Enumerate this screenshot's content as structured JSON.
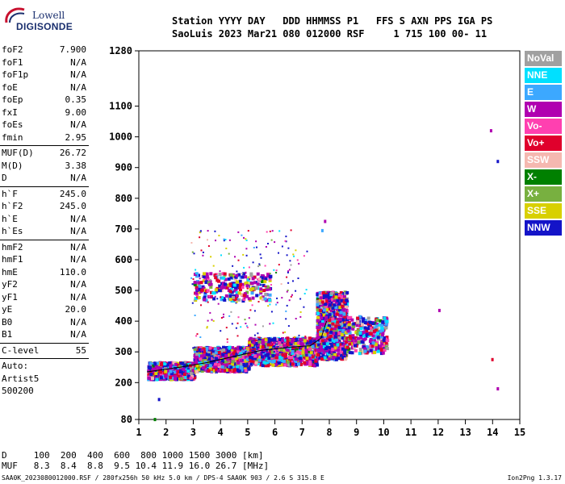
{
  "logo": {
    "line1": "Lowell",
    "line2": "DIGISONDE"
  },
  "header": {
    "labels": "Station YYYY DAY   DDD HHMMSS P1   FFS S AXN PPS IGA PS",
    "values": "SaoLuis 2023 Mar21 080 012000 RSF     1 715 100 00- 11"
  },
  "params": {
    "group1": [
      {
        "name": "foF2",
        "value": "7.900"
      },
      {
        "name": "foF1",
        "value": "N/A"
      },
      {
        "name": "foF1p",
        "value": "N/A"
      },
      {
        "name": "foE",
        "value": "N/A"
      },
      {
        "name": "foEp",
        "value": "0.35"
      },
      {
        "name": "fxI",
        "value": "9.00"
      },
      {
        "name": "foEs",
        "value": "N/A"
      },
      {
        "name": "fmin",
        "value": "2.95"
      }
    ],
    "group2": [
      {
        "name": "MUF(D)",
        "value": "26.72"
      },
      {
        "name": "M(D)",
        "value": "3.38"
      },
      {
        "name": "D",
        "value": "N/A"
      }
    ],
    "group3": [
      {
        "name": "h`F",
        "value": "245.0"
      },
      {
        "name": "h`F2",
        "value": "245.0"
      },
      {
        "name": "h`E",
        "value": "N/A"
      },
      {
        "name": "h`Es",
        "value": "N/A"
      }
    ],
    "group4": [
      {
        "name": "hmF2",
        "value": "N/A"
      },
      {
        "name": "hmF1",
        "value": "N/A"
      },
      {
        "name": "hmE",
        "value": "110.0"
      },
      {
        "name": "yF2",
        "value": "N/A"
      },
      {
        "name": "yF1",
        "value": "N/A"
      },
      {
        "name": "yE",
        "value": "20.0"
      },
      {
        "name": "B0",
        "value": "N/A"
      },
      {
        "name": "B1",
        "value": "N/A"
      }
    ],
    "clevel": {
      "name": "C-level",
      "value": "55"
    },
    "auto": [
      "Auto:",
      "Artist5",
      "500200"
    ]
  },
  "legend": [
    {
      "label": "NoVal",
      "color": "#a0a0a0"
    },
    {
      "label": "NNE",
      "color": "#00e0ff"
    },
    {
      "label": "E",
      "color": "#3ca8ff"
    },
    {
      "label": "W",
      "color": "#b000b0"
    },
    {
      "label": "Vo-",
      "color": "#ff40b0"
    },
    {
      "label": "Vo+",
      "color": "#e0002c"
    },
    {
      "label": "SSW",
      "color": "#f5b8b0"
    },
    {
      "label": "X-",
      "color": "#008000"
    },
    {
      "label": "X+",
      "color": "#78b040"
    },
    {
      "label": "SSE",
      "color": "#d8d000"
    },
    {
      "label": "NNW",
      "color": "#1414c8"
    }
  ],
  "chart_data": {
    "type": "scatter",
    "title": "",
    "xlabel": "",
    "ylabel": "",
    "xlim": [
      1,
      15
    ],
    "ylim": [
      80,
      1280
    ],
    "x_ticks": [
      "1",
      "2",
      "3",
      "4",
      "5",
      "6",
      "7",
      "8",
      "9",
      "10",
      "11",
      "12",
      "13",
      "14",
      "15"
    ],
    "y_ticks": [
      {
        "value": 1280,
        "label": "1280"
      },
      {
        "value": 1100,
        "label": "1100"
      },
      {
        "value": 1000,
        "label": "1000"
      },
      {
        "value": 900,
        "label": "900"
      },
      {
        "value": 800,
        "label": "800"
      },
      {
        "value": 700,
        "label": "700"
      },
      {
        "value": 600,
        "label": "600"
      },
      {
        "value": 500,
        "label": "500"
      },
      {
        "value": 400,
        "label": "400"
      },
      {
        "value": 300,
        "label": "300"
      },
      {
        "value": 200,
        "label": "200"
      },
      {
        "value": 80,
        "label": "80"
      }
    ],
    "echo_regions": [
      {
        "x": [
          1.3,
          3.0
        ],
        "y": [
          215,
          270
        ],
        "density": "high"
      },
      {
        "x": [
          3.0,
          5.0
        ],
        "y": [
          240,
          320
        ],
        "density": "high"
      },
      {
        "x": [
          5.0,
          7.5
        ],
        "y": [
          260,
          350
        ],
        "density": "high"
      },
      {
        "x": [
          7.5,
          8.6
        ],
        "y": [
          280,
          500
        ],
        "density": "high"
      },
      {
        "x": [
          8.6,
          10.1
        ],
        "y": [
          300,
          420
        ],
        "density": "medium"
      },
      {
        "x": [
          3.0,
          5.8
        ],
        "y": [
          470,
          560
        ],
        "density": "medium"
      },
      {
        "x": [
          2.9,
          7.2
        ],
        "y": [
          300,
          700
        ],
        "density": "low"
      }
    ],
    "isolated_points": [
      {
        "x": 12.0,
        "y": 440
      },
      {
        "x": 13.9,
        "y": 1025
      },
      {
        "x": 14.15,
        "y": 925
      },
      {
        "x": 13.95,
        "y": 280
      },
      {
        "x": 14.15,
        "y": 185
      },
      {
        "x": 1.55,
        "y": 85
      },
      {
        "x": 1.7,
        "y": 150
      },
      {
        "x": 7.8,
        "y": 730
      },
      {
        "x": 7.7,
        "y": 700
      }
    ],
    "trace": [
      {
        "x": 1.3,
        "y": 235
      },
      {
        "x": 2.5,
        "y": 250
      },
      {
        "x": 3.5,
        "y": 265
      },
      {
        "x": 4.5,
        "y": 285
      },
      {
        "x": 5.5,
        "y": 305
      },
      {
        "x": 6.5,
        "y": 315
      },
      {
        "x": 7.3,
        "y": 320
      },
      {
        "x": 7.7,
        "y": 345
      },
      {
        "x": 7.9,
        "y": 400
      }
    ]
  },
  "bottom": {
    "d_line": "D     100  200  400  600  800 1000 1500 3000 [km]",
    "muf_line": "MUF   8.3  8.4  8.8  9.5 10.4 11.9 16.0 26.7 [MHz]"
  },
  "footer": {
    "text": "SAA0K_2023080012000.RSF / 280fx256h 50 kHz 5.0 km / DPS-4 SAA0K 903 / 2.6 S 315.8 E",
    "version": "Ion2Png 1.3.17"
  }
}
